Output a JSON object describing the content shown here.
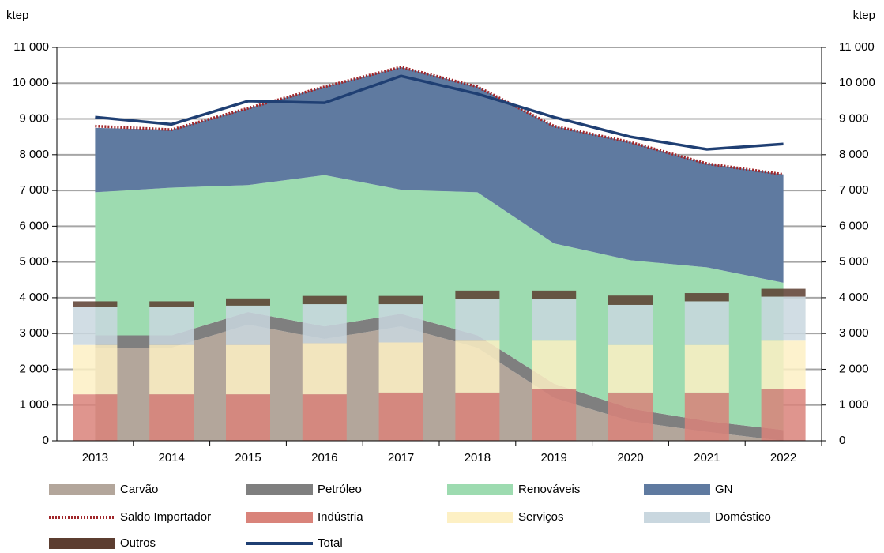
{
  "chart_data": {
    "type": "combo",
    "y_unit": "ktep",
    "y2_unit": "ktep",
    "categories": [
      "2013",
      "2014",
      "2015",
      "2016",
      "2017",
      "2018",
      "2019",
      "2020",
      "2021",
      "2022"
    ],
    "ylim": [
      0,
      11000
    ],
    "yticks": [
      0,
      {
        "value": 1000,
        "label": "1 000"
      },
      {
        "value": 2000,
        "label": "2 000"
      },
      {
        "value": 3000,
        "label": "3 000"
      },
      {
        "value": 4000,
        "label": "4 000"
      },
      {
        "value": 5000,
        "label": "5 000"
      },
      {
        "value": 6000,
        "label": "6 000"
      },
      {
        "value": 7000,
        "label": "7 000"
      },
      {
        "value": 8000,
        "label": "8 000"
      },
      {
        "value": 9000,
        "label": "9 000"
      },
      {
        "value": 10000,
        "label": "10 000"
      },
      {
        "value": 11000,
        "label": "11 000"
      }
    ],
    "y2lim": [
      0,
      11000
    ],
    "y2ticks": [
      0,
      {
        "value": 1000,
        "label": "1 000"
      },
      {
        "value": 2000,
        "label": "2 000"
      },
      {
        "value": 3000,
        "label": "3 000"
      },
      {
        "value": 4000,
        "label": "4 000"
      },
      {
        "value": 5000,
        "label": "5 000"
      },
      {
        "value": 6000,
        "label": "6 000"
      },
      {
        "value": 7000,
        "label": "7 000"
      },
      {
        "value": 8000,
        "label": "8 000"
      },
      {
        "value": 9000,
        "label": "9 000"
      },
      {
        "value": 10000,
        "label": "10 000"
      },
      {
        "value": 11000,
        "label": "11 000"
      }
    ],
    "grid": true,
    "legend": "bottom",
    "series": [
      {
        "name": "Carvão",
        "type": "area",
        "color": "#b3a69b",
        "values": [
          2600,
          2600,
          3250,
          2850,
          3200,
          2600,
          1200,
          550,
          250,
          0
        ]
      },
      {
        "name": "Petróleo",
        "type": "area",
        "color": "#7f7f7f",
        "values": [
          350,
          350,
          350,
          350,
          350,
          350,
          400,
          350,
          300,
          300
        ]
      },
      {
        "name": "Renováveis",
        "type": "area",
        "color": "#9ddbb0",
        "values": [
          4000,
          4130,
          3550,
          4230,
          3470,
          4000,
          3920,
          4150,
          4300,
          4120
        ]
      },
      {
        "name": "GN",
        "type": "area",
        "color": "#5f7aa0",
        "values": [
          1800,
          1620,
          2150,
          2470,
          3430,
          2950,
          3280,
          3300,
          2900,
          3030
        ]
      },
      {
        "name": "Saldo Importador",
        "type": "line",
        "style": "dotted",
        "color": "#a0262a",
        "values": [
          8800,
          8700,
          9300,
          9900,
          10450,
          9900,
          8800,
          8350,
          7750,
          7450
        ]
      },
      {
        "name": "Indústria",
        "type": "bar",
        "color": "#d9837a",
        "values": [
          1300,
          1300,
          1300,
          1300,
          1350,
          1350,
          1450,
          1350,
          1350,
          1450
        ]
      },
      {
        "name": "Serviços",
        "type": "bar",
        "color": "#fdf0c4",
        "values": [
          1380,
          1380,
          1380,
          1430,
          1400,
          1450,
          1350,
          1330,
          1330,
          1350
        ]
      },
      {
        "name": "Doméstico",
        "type": "bar",
        "color": "#c9d7df",
        "values": [
          1070,
          1070,
          1100,
          1090,
          1070,
          1170,
          1170,
          1120,
          1220,
          1230
        ]
      },
      {
        "name": "Outros",
        "type": "bar",
        "color": "#5c3d30",
        "values": [
          150,
          150,
          200,
          230,
          230,
          230,
          230,
          260,
          230,
          220
        ]
      },
      {
        "name": "Total",
        "type": "line",
        "style": "solid",
        "color": "#1f3f73",
        "values": [
          9050,
          8850,
          9500,
          9450,
          10200,
          9700,
          9050,
          8500,
          8150,
          8300
        ]
      }
    ]
  }
}
